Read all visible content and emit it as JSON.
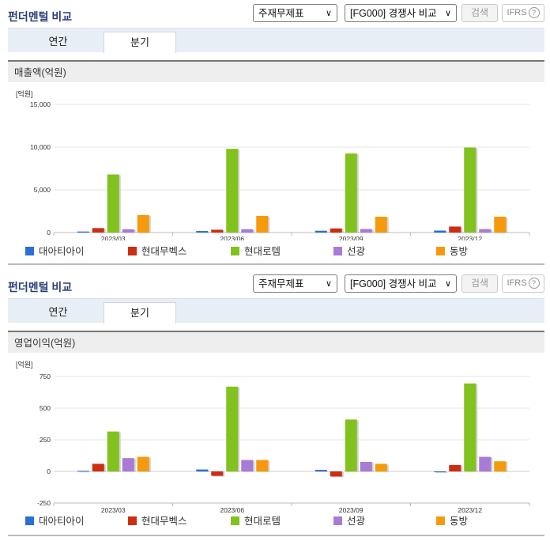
{
  "page_title": "펀더멘털 비교",
  "controls": {
    "select1": "주재무제표",
    "select2": "[FG000] 경쟁사 비교",
    "search_button": "검색",
    "ifrs_label": "IFRS",
    "help_glyph": "?"
  },
  "tabs": [
    "연간",
    "분기"
  ],
  "active_tab": "분기",
  "colors": {
    "대아티아이": "#2a6fd6",
    "현대무벡스": "#cc2e12",
    "현대로템": "#82c21e",
    "선광": "#a97ad6",
    "동방": "#f59a0c"
  },
  "chart_data": [
    {
      "type": "bar",
      "section_label": "매출액(억원)",
      "unit_label": "[억원]",
      "categories": [
        "2023/03",
        "2023/06",
        "2023/09",
        "2023/12"
      ],
      "ylim": [
        0,
        15000
      ],
      "yticks": [
        0,
        5000,
        10000,
        15000
      ],
      "ytick_labels": [
        "0",
        "5,000",
        "10,000",
        "15,000"
      ],
      "grid": true,
      "legend_position": "bottom",
      "series": [
        {
          "name": "대아티아이",
          "values": [
            120,
            180,
            210,
            230
          ]
        },
        {
          "name": "현대무벡스",
          "values": [
            520,
            330,
            480,
            700
          ]
        },
        {
          "name": "현대로템",
          "values": [
            6800,
            9800,
            9250,
            9950
          ]
        },
        {
          "name": "선광",
          "values": [
            380,
            390,
            410,
            400
          ]
        },
        {
          "name": "동방",
          "values": [
            2050,
            1950,
            1850,
            1850
          ]
        }
      ]
    },
    {
      "type": "bar",
      "section_label": "영업이익(억원)",
      "unit_label": "[억원]",
      "categories": [
        "2023/03",
        "2023/06",
        "2023/09",
        "2023/12"
      ],
      "ylim": [
        -250,
        750
      ],
      "yticks": [
        -250,
        0,
        250,
        500,
        750
      ],
      "ytick_labels": [
        "-250",
        "0",
        "250",
        "500",
        "750"
      ],
      "grid": true,
      "legend_position": "bottom",
      "series": [
        {
          "name": "대아티아이",
          "values": [
            5,
            15,
            12,
            0
          ]
        },
        {
          "name": "현대무벡스",
          "values": [
            60,
            -35,
            -40,
            50
          ]
        },
        {
          "name": "현대로템",
          "values": [
            315,
            670,
            410,
            695
          ]
        },
        {
          "name": "선광",
          "values": [
            105,
            90,
            75,
            115
          ]
        },
        {
          "name": "동방",
          "values": [
            115,
            90,
            60,
            80
          ]
        }
      ]
    }
  ]
}
